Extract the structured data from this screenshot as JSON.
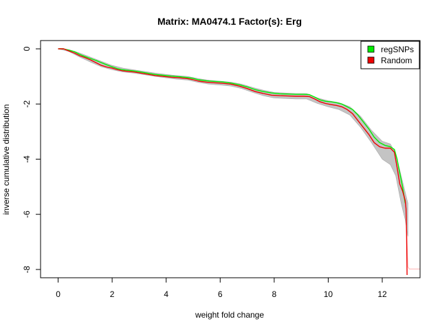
{
  "chart_data": {
    "type": "line",
    "title": "Matrix: MA0474.1 Factor(s): Erg",
    "xlabel": "weight fold change",
    "ylabel": "inverse cumulative distribution",
    "xlim": [
      -0.65,
      13.4
    ],
    "ylim": [
      -8.3,
      0.3
    ],
    "xticks": [
      0,
      2,
      4,
      6,
      8,
      10,
      12
    ],
    "yticks": [
      0,
      -2,
      -4,
      -6,
      -8
    ],
    "grid": false,
    "legend_position": "top-right",
    "series": [
      {
        "name": "regSNPs",
        "color": "#00ee00",
        "x": [
          0.0,
          0.2,
          0.4,
          0.6,
          0.8,
          1.0,
          1.2,
          1.4,
          1.6,
          1.8,
          2.0,
          2.2,
          2.4,
          2.6,
          2.8,
          3.0,
          3.3,
          3.6,
          3.9,
          4.2,
          4.5,
          4.8,
          5.0,
          5.2,
          5.5,
          5.8,
          6.1,
          6.4,
          6.7,
          7.0,
          7.3,
          7.6,
          7.9,
          8.2,
          8.5,
          8.8,
          9.1,
          9.3,
          9.5,
          9.7,
          9.9,
          10.1,
          10.3,
          10.5,
          10.7,
          10.9,
          11.1,
          11.3,
          11.5,
          11.7,
          11.9,
          12.1,
          12.3,
          12.45,
          12.55,
          12.65,
          12.75,
          12.85
        ],
        "y": [
          0.0,
          0.0,
          -0.05,
          -0.1,
          -0.2,
          -0.28,
          -0.35,
          -0.42,
          -0.5,
          -0.58,
          -0.65,
          -0.72,
          -0.76,
          -0.78,
          -0.8,
          -0.83,
          -0.88,
          -0.93,
          -0.96,
          -0.99,
          -1.01,
          -1.04,
          -1.07,
          -1.12,
          -1.16,
          -1.18,
          -1.2,
          -1.24,
          -1.3,
          -1.38,
          -1.48,
          -1.55,
          -1.6,
          -1.63,
          -1.64,
          -1.65,
          -1.65,
          -1.66,
          -1.75,
          -1.85,
          -1.9,
          -1.92,
          -1.95,
          -2.0,
          -2.1,
          -2.2,
          -2.4,
          -2.65,
          -2.9,
          -3.2,
          -3.4,
          -3.5,
          -3.55,
          -3.65,
          -4.0,
          -4.5,
          -5.0,
          -5.6
        ]
      },
      {
        "name": "Random",
        "color": "#ee0000",
        "x": [
          0.0,
          0.2,
          0.4,
          0.6,
          0.8,
          1.0,
          1.2,
          1.4,
          1.6,
          1.8,
          2.0,
          2.2,
          2.4,
          2.6,
          2.8,
          3.0,
          3.3,
          3.6,
          3.9,
          4.2,
          4.5,
          4.8,
          5.0,
          5.2,
          5.5,
          5.8,
          6.1,
          6.4,
          6.7,
          7.0,
          7.3,
          7.6,
          7.9,
          8.2,
          8.5,
          8.8,
          9.1,
          9.3,
          9.5,
          9.7,
          9.9,
          10.1,
          10.3,
          10.5,
          10.7,
          10.9,
          11.1,
          11.3,
          11.5,
          11.7,
          11.9,
          12.1,
          12.3,
          12.45,
          12.55,
          12.65,
          12.75,
          12.85,
          12.88,
          12.9,
          12.92
        ],
        "y": [
          0.0,
          0.0,
          -0.08,
          -0.15,
          -0.25,
          -0.32,
          -0.4,
          -0.5,
          -0.6,
          -0.66,
          -0.7,
          -0.76,
          -0.8,
          -0.82,
          -0.84,
          -0.87,
          -0.92,
          -0.97,
          -1.0,
          -1.03,
          -1.05,
          -1.08,
          -1.12,
          -1.17,
          -1.21,
          -1.23,
          -1.25,
          -1.28,
          -1.35,
          -1.44,
          -1.55,
          -1.62,
          -1.68,
          -1.7,
          -1.71,
          -1.72,
          -1.72,
          -1.73,
          -1.82,
          -1.92,
          -1.98,
          -2.02,
          -2.05,
          -2.1,
          -2.2,
          -2.35,
          -2.6,
          -2.85,
          -3.1,
          -3.4,
          -3.55,
          -3.6,
          -3.6,
          -3.75,
          -4.3,
          -4.9,
          -5.15,
          -5.5,
          -5.8,
          -6.7,
          -8.2
        ]
      }
    ],
    "background_band": {
      "color": "#bebebe",
      "x": [
        0.0,
        0.4,
        0.8,
        1.2,
        1.6,
        2.0,
        2.4,
        2.8,
        3.2,
        3.6,
        4.0,
        4.4,
        4.8,
        5.2,
        5.6,
        6.0,
        6.4,
        6.8,
        7.2,
        7.6,
        8.0,
        8.4,
        8.8,
        9.2,
        9.6,
        10.0,
        10.4,
        10.8,
        11.2,
        11.6,
        12.0,
        12.3,
        12.5,
        12.7,
        12.85,
        12.95
      ],
      "upper": [
        0.0,
        -0.03,
        -0.15,
        -0.3,
        -0.45,
        -0.6,
        -0.7,
        -0.76,
        -0.82,
        -0.88,
        -0.93,
        -0.97,
        -1.0,
        -1.08,
        -1.14,
        -1.17,
        -1.21,
        -1.28,
        -1.4,
        -1.5,
        -1.58,
        -1.6,
        -1.62,
        -1.62,
        -1.78,
        -1.88,
        -1.95,
        -2.1,
        -2.45,
        -2.95,
        -3.35,
        -3.45,
        -3.8,
        -4.6,
        -5.2,
        -5.6
      ],
      "lower": [
        0.0,
        -0.1,
        -0.3,
        -0.48,
        -0.65,
        -0.76,
        -0.84,
        -0.88,
        -0.94,
        -1.0,
        -1.05,
        -1.1,
        -1.13,
        -1.22,
        -1.28,
        -1.31,
        -1.35,
        -1.44,
        -1.58,
        -1.7,
        -1.78,
        -1.8,
        -1.82,
        -1.82,
        -1.98,
        -2.1,
        -2.2,
        -2.4,
        -2.85,
        -3.4,
        -4.0,
        -4.2,
        -4.6,
        -5.6,
        -6.2,
        -6.8
      ]
    },
    "random_tail": {
      "color": "#ffb0b0",
      "x": [
        12.9,
        12.95,
        13.0,
        13.4
      ],
      "y": [
        -6.5,
        -7.9,
        -7.98,
        -7.98
      ]
    }
  }
}
